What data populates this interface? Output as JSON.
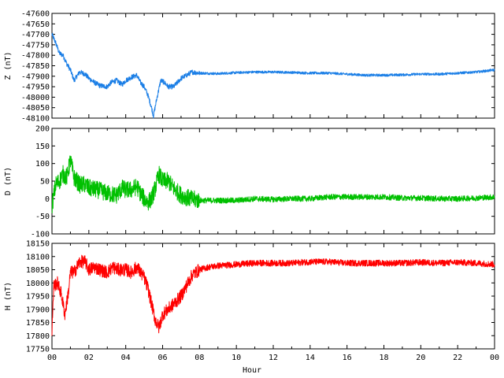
{
  "chart_data": [
    {
      "type": "line",
      "ylabel": "Z (nT)",
      "ylim": [
        -48100,
        -47600
      ],
      "yticks": [
        -47600,
        -47650,
        -47700,
        -47750,
        -47800,
        -47850,
        -47900,
        -47950,
        -48000,
        -48050,
        -48100
      ],
      "xlim": [
        0,
        24
      ],
      "color": "#1a7ee6",
      "series": [
        {
          "x": [
            0,
            0.2,
            0.4,
            0.6,
            0.8,
            1.0,
            1.2,
            1.5,
            1.8,
            2.0,
            2.3,
            2.6,
            3.0,
            3.2,
            3.5,
            3.8,
            4.0,
            4.3,
            4.6,
            4.8,
            5.0,
            5.2,
            5.4,
            5.5,
            5.7,
            5.9,
            6.1,
            6.3,
            6.6,
            7.0,
            7.3,
            7.6,
            8.0,
            9,
            10,
            11,
            12,
            13,
            14,
            15,
            16,
            17,
            18,
            19,
            20,
            21,
            22,
            23,
            24
          ],
          "values": [
            -47700,
            -47740,
            -47790,
            -47800,
            -47840,
            -47870,
            -47920,
            -47880,
            -47890,
            -47910,
            -47930,
            -47945,
            -47950,
            -47930,
            -47920,
            -47940,
            -47920,
            -47905,
            -47895,
            -47930,
            -47950,
            -47990,
            -48050,
            -48090,
            -48000,
            -47920,
            -47930,
            -47950,
            -47950,
            -47910,
            -47895,
            -47880,
            -47885,
            -47888,
            -47883,
            -47880,
            -47880,
            -47882,
            -47885,
            -47885,
            -47890,
            -47895,
            -47895,
            -47893,
            -47890,
            -47890,
            -47885,
            -47880,
            -47870
          ]
        }
      ]
    },
    {
      "type": "line",
      "ylabel": "D (nT)",
      "ylim": [
        -100,
        200
      ],
      "yticks": [
        -100,
        -50,
        0,
        50,
        100,
        150,
        200
      ],
      "xlim": [
        0,
        24
      ],
      "color": "#00c000",
      "series": [
        {
          "x": [
            0,
            0.2,
            0.4,
            0.6,
            0.8,
            1.0,
            1.2,
            1.5,
            1.8,
            2.0,
            2.5,
            3.0,
            3.5,
            3.8,
            4.0,
            4.3,
            4.6,
            4.8,
            5.0,
            5.2,
            5.4,
            5.6,
            5.8,
            6.0,
            6.3,
            6.6,
            7.0,
            7.5,
            8.0,
            9,
            10,
            11,
            12,
            13,
            14,
            15,
            16,
            17,
            18,
            19,
            20,
            21,
            22,
            23,
            24
          ],
          "values": [
            -20,
            40,
            50,
            70,
            60,
            110,
            60,
            40,
            40,
            30,
            25,
            15,
            10,
            30,
            25,
            25,
            35,
            15,
            0,
            -10,
            0,
            30,
            70,
            50,
            50,
            30,
            10,
            0,
            -5,
            -5,
            -5,
            0,
            -2,
            0,
            0,
            5,
            5,
            5,
            5,
            2,
            2,
            0,
            0,
            2,
            5
          ]
        }
      ]
    },
    {
      "type": "line",
      "ylabel": "H (nT)",
      "ylim": [
        17750,
        18150
      ],
      "yticks": [
        17750,
        17800,
        17850,
        17900,
        17950,
        18000,
        18050,
        18100,
        18150
      ],
      "xlim": [
        0,
        24
      ],
      "xlabel": "Hour",
      "xtick_labels": [
        "00",
        "02",
        "04",
        "06",
        "08",
        "10",
        "12",
        "14",
        "16",
        "18",
        "20",
        "22",
        "00"
      ],
      "color": "#ff0000",
      "series": [
        {
          "x": [
            0,
            0.1,
            0.3,
            0.5,
            0.7,
            0.9,
            1.0,
            1.2,
            1.5,
            1.8,
            2.0,
            2.3,
            2.6,
            3.0,
            3.3,
            3.6,
            4.0,
            4.3,
            4.6,
            4.8,
            5.0,
            5.2,
            5.4,
            5.6,
            5.8,
            6.0,
            6.3,
            6.6,
            7.0,
            7.3,
            7.6,
            8.0,
            8.5,
            9,
            10,
            11,
            12,
            13,
            14,
            15,
            16,
            17,
            18,
            19,
            20,
            21,
            22,
            23,
            24
          ],
          "values": [
            17820,
            17990,
            18000,
            17960,
            17880,
            17970,
            18040,
            18040,
            18080,
            18080,
            18050,
            18060,
            18050,
            18040,
            18060,
            18050,
            18050,
            18040,
            18060,
            18040,
            18020,
            17980,
            17920,
            17860,
            17830,
            17880,
            17900,
            17920,
            17950,
            17990,
            18030,
            18050,
            18060,
            18065,
            18070,
            18075,
            18075,
            18075,
            18080,
            18080,
            18075,
            18075,
            18075,
            18075,
            18078,
            18075,
            18078,
            18075,
            18070
          ]
        }
      ]
    }
  ]
}
